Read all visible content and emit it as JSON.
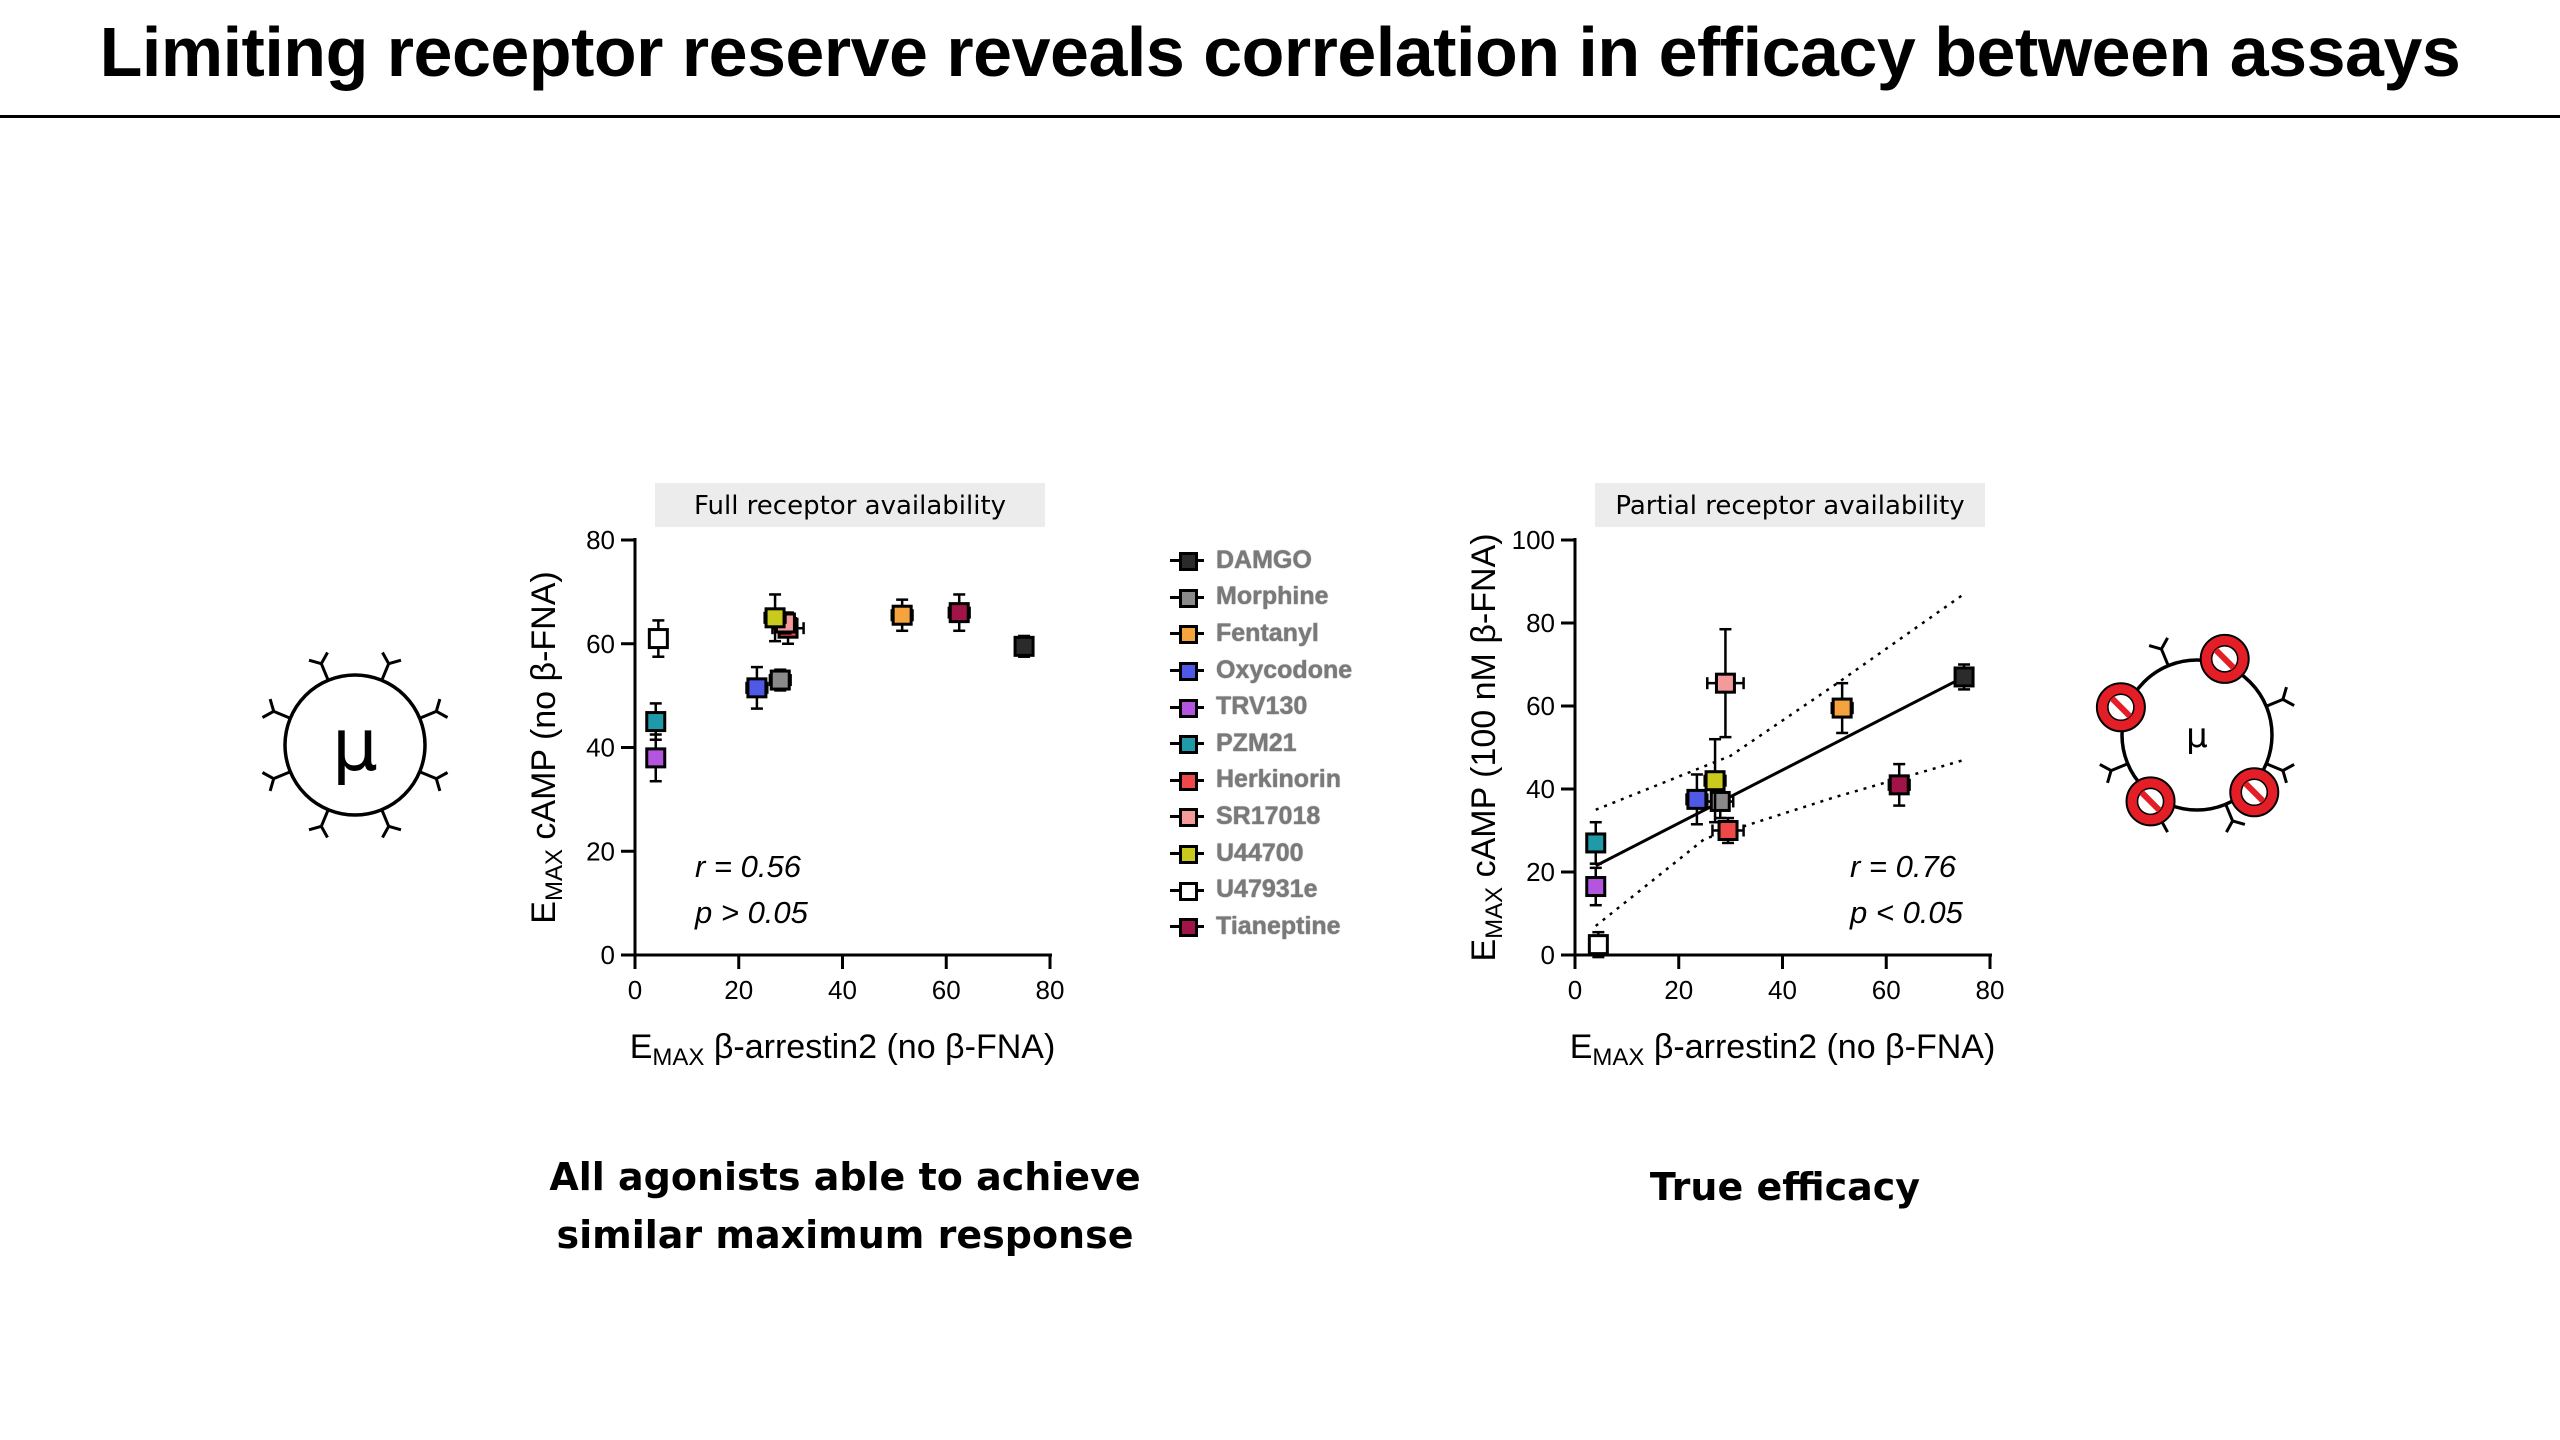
{
  "title": "Limiting receptor reserve reveals correlation in efficacy between assays",
  "colors": {
    "DAMGO": "#2b2b2b",
    "Morphine": "#8a8a8a",
    "Fentanyl": "#f5a33c",
    "Oxycodone": "#5058e6",
    "TRV130": "#b455e0",
    "PZM21": "#1f9aa8",
    "Herkinorin": "#ef4848",
    "SR17018": "#f49a9a",
    "U44700": "#c9c91e",
    "U47931e": "#ffffff",
    "Tianeptine": "#a0144a"
  },
  "legend": [
    "DAMGO",
    "Morphine",
    "Fentanyl",
    "Oxycodone",
    "TRV130",
    "PZM21",
    "Herkinorin",
    "SR17018",
    "U44700",
    "U47931e",
    "Tianeptine"
  ],
  "captions": {
    "left": [
      "All agonists able to achieve",
      "similar maximum response"
    ],
    "right": "True efficacy"
  },
  "icons": {
    "left": {
      "name": "receptor-full-icon",
      "symbol": "μ"
    },
    "right": {
      "name": "receptor-blocked-icon",
      "symbol": "μ"
    }
  },
  "chart_data": [
    {
      "type": "scatter",
      "title": "Full receptor availability",
      "xlabel": {
        "main": "E",
        "sub": "MAX",
        "rest": " β-arrestin2 (no β-FNA)"
      },
      "ylabel": {
        "main": "E",
        "sub": "MAX",
        "rest": " cAMP (no β-FNA)"
      },
      "xlim": [
        0,
        80
      ],
      "ylim": [
        0,
        80
      ],
      "xticks": [
        0,
        20,
        40,
        60,
        80
      ],
      "yticks": [
        0,
        20,
        40,
        60,
        80
      ],
      "annotation": [
        "r = 0.56",
        "p > 0.05"
      ],
      "points": [
        {
          "name": "DAMGO",
          "x": 75,
          "y": 59.5,
          "xerr": 1.5,
          "yerr": 2
        },
        {
          "name": "Morphine",
          "x": 28,
          "y": 53,
          "xerr": 2,
          "yerr": 2
        },
        {
          "name": "Fentanyl",
          "x": 51.5,
          "y": 65.5,
          "xerr": 2,
          "yerr": 3
        },
        {
          "name": "Oxycodone",
          "x": 23.5,
          "y": 51.5,
          "xerr": 2,
          "yerr": 4
        },
        {
          "name": "TRV130",
          "x": 4,
          "y": 38,
          "xerr": 1,
          "yerr": 4.5
        },
        {
          "name": "PZM21",
          "x": 4,
          "y": 45,
          "xerr": 1,
          "yerr": 3.5
        },
        {
          "name": "Herkinorin",
          "x": 29.5,
          "y": 63,
          "xerr": 3,
          "yerr": 3
        },
        {
          "name": "SR17018",
          "x": 29,
          "y": 64,
          "xerr": 2,
          "yerr": 2
        },
        {
          "name": "U44700",
          "x": 27,
          "y": 65,
          "xerr": 2,
          "yerr": 4.5
        },
        {
          "name": "U47931e",
          "x": 4.5,
          "y": 61,
          "xerr": 1,
          "yerr": 3.5
        },
        {
          "name": "Tianeptine",
          "x": 62.5,
          "y": 66,
          "xerr": 2,
          "yerr": 3.5
        }
      ]
    },
    {
      "type": "scatter",
      "title": "Partial receptor availability",
      "xlabel": {
        "main": "E",
        "sub": "MAX",
        "rest": " β-arrestin2 (no β-FNA)"
      },
      "ylabel": {
        "main": "E",
        "sub": "MAX",
        "rest": " cAMP (100 nM β-FNA)"
      },
      "xlim": [
        0,
        80
      ],
      "ylim": [
        0,
        100
      ],
      "xticks": [
        0,
        20,
        40,
        60,
        80
      ],
      "yticks": [
        0,
        20,
        40,
        60,
        80,
        100
      ],
      "annotation": [
        "r = 0.76",
        "p < 0.05"
      ],
      "regression": {
        "x": [
          4,
          75
        ],
        "y": [
          21.5,
          67
        ]
      },
      "confidence_band": {
        "upper": [
          [
            4,
            35
          ],
          [
            30,
            48
          ],
          [
            50,
            65
          ],
          [
            75,
            87
          ]
        ],
        "lower": [
          [
            4,
            7
          ],
          [
            25,
            28
          ],
          [
            50,
            38
          ],
          [
            75,
            47
          ]
        ]
      },
      "points": [
        {
          "name": "DAMGO",
          "x": 75,
          "y": 67,
          "xerr": 1.5,
          "yerr": 3
        },
        {
          "name": "Morphine",
          "x": 28,
          "y": 37,
          "xerr": 2.5,
          "yerr": 4
        },
        {
          "name": "Fentanyl",
          "x": 51.5,
          "y": 59.5,
          "xerr": 2,
          "yerr": 6
        },
        {
          "name": "Oxycodone",
          "x": 23.5,
          "y": 37.5,
          "xerr": 2,
          "yerr": 6
        },
        {
          "name": "TRV130",
          "x": 4,
          "y": 16.5,
          "xerr": 1,
          "yerr": 4.5
        },
        {
          "name": "PZM21",
          "x": 4,
          "y": 27,
          "xerr": 1,
          "yerr": 5
        },
        {
          "name": "Herkinorin",
          "x": 29.5,
          "y": 30,
          "xerr": 3,
          "yerr": 3
        },
        {
          "name": "SR17018",
          "x": 29,
          "y": 65.5,
          "xerr": 3.5,
          "yerr": 13
        },
        {
          "name": "U44700",
          "x": 27,
          "y": 42,
          "xerr": 2,
          "yerr": 10
        },
        {
          "name": "U47931e",
          "x": 4.5,
          "y": 2.5,
          "xerr": 1,
          "yerr": 3
        },
        {
          "name": "Tianeptine",
          "x": 62.5,
          "y": 41,
          "xerr": 2,
          "yerr": 5
        }
      ]
    }
  ]
}
